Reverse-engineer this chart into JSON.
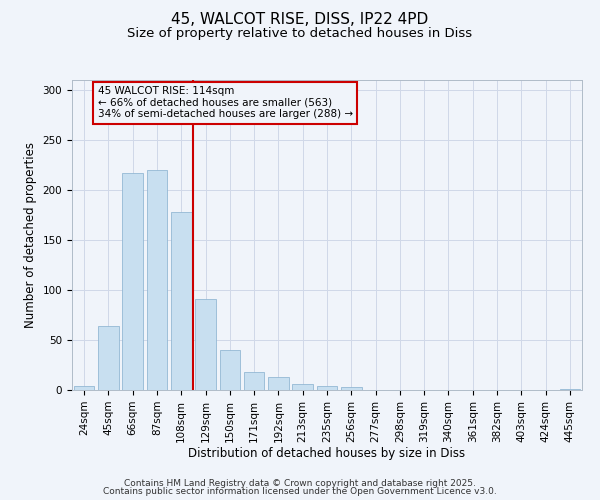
{
  "title_line1": "45, WALCOT RISE, DISS, IP22 4PD",
  "title_line2": "Size of property relative to detached houses in Diss",
  "xlabel": "Distribution of detached houses by size in Diss",
  "ylabel": "Number of detached properties",
  "bar_labels": [
    "24sqm",
    "45sqm",
    "66sqm",
    "87sqm",
    "108sqm",
    "129sqm",
    "150sqm",
    "171sqm",
    "192sqm",
    "213sqm",
    "235sqm",
    "256sqm",
    "277sqm",
    "298sqm",
    "319sqm",
    "340sqm",
    "361sqm",
    "382sqm",
    "403sqm",
    "424sqm",
    "445sqm"
  ],
  "bar_values": [
    4,
    64,
    217,
    220,
    178,
    91,
    40,
    18,
    13,
    6,
    4,
    3,
    0,
    0,
    0,
    0,
    0,
    0,
    0,
    0,
    1
  ],
  "bar_color": "#c8dff0",
  "bar_edge_color": "#94b8d4",
  "vline_color": "#cc0000",
  "annotation_text_line1": "45 WALCOT RISE: 114sqm",
  "annotation_text_line2": "← 66% of detached houses are smaller (563)",
  "annotation_text_line3": "34% of semi-detached houses are larger (288) →",
  "annotation_box_color": "#cc0000",
  "ylim": [
    0,
    310
  ],
  "yticks": [
    0,
    50,
    100,
    150,
    200,
    250,
    300
  ],
  "background_color": "#f0f4fa",
  "grid_color": "#d0d8e8",
  "footer_line1": "Contains HM Land Registry data © Crown copyright and database right 2025.",
  "footer_line2": "Contains public sector information licensed under the Open Government Licence v3.0.",
  "title_fontsize": 11,
  "subtitle_fontsize": 9.5,
  "axis_label_fontsize": 8.5,
  "tick_fontsize": 7.5,
  "annotation_fontsize": 7.5,
  "footer_fontsize": 6.5
}
